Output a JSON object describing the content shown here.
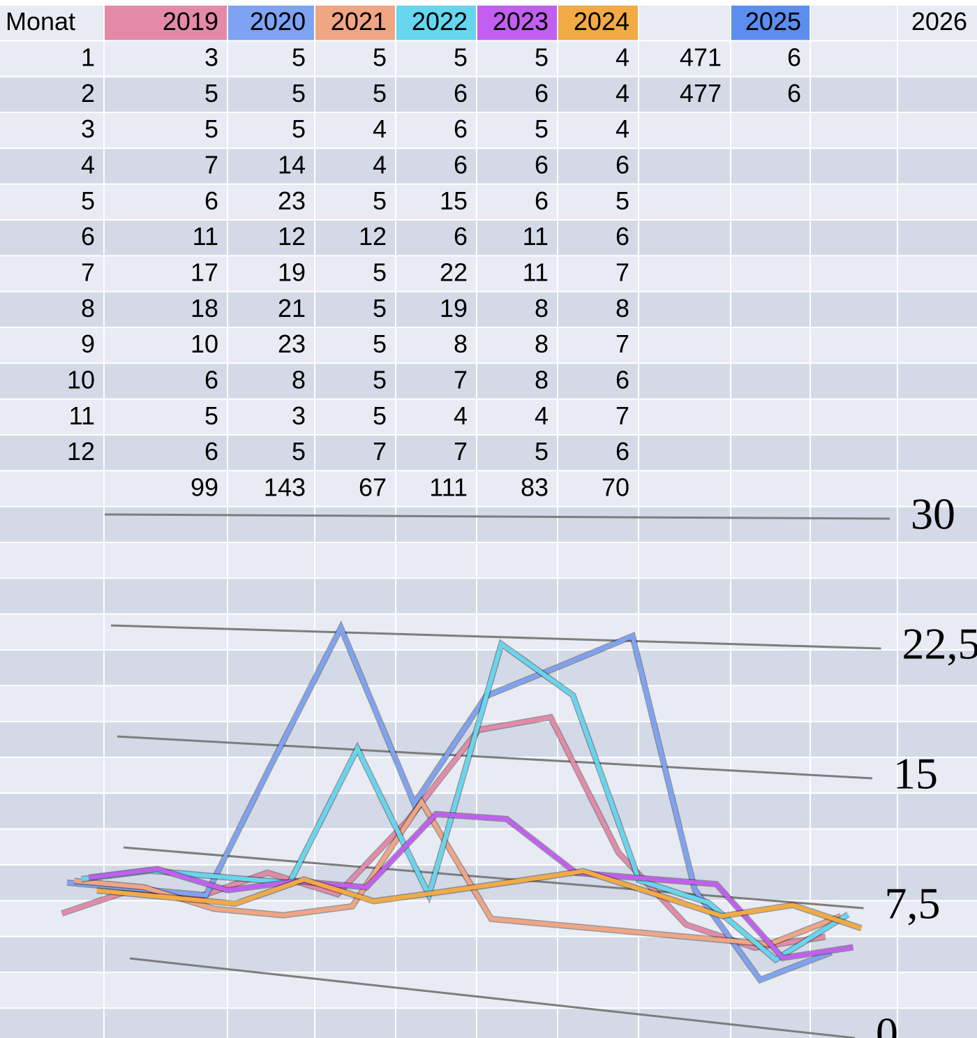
{
  "table": {
    "first_header": "Monat",
    "totals": [
      99,
      143,
      67,
      111,
      83,
      70
    ],
    "extra_values": [
      471,
      477
    ],
    "header_2025": "2025",
    "values_2025": [
      6,
      6
    ],
    "header_2026": "2026"
  },
  "chart_data": {
    "type": "line",
    "categories": [
      1,
      2,
      3,
      4,
      5,
      6,
      7,
      8,
      9,
      10,
      11,
      12
    ],
    "series": [
      {
        "name": "2019",
        "color": "#e48aa8",
        "values": [
          3,
          5,
          5,
          7,
          6,
          11,
          17,
          18,
          10,
          6,
          5,
          6
        ]
      },
      {
        "name": "2020",
        "color": "#7ea3f3",
        "values": [
          5,
          5,
          5,
          14,
          23,
          12,
          19,
          21,
          23,
          8,
          3,
          5
        ]
      },
      {
        "name": "2021",
        "color": "#f0a583",
        "values": [
          5,
          5,
          4,
          4,
          5,
          12,
          5,
          5,
          5,
          5,
          5,
          7
        ]
      },
      {
        "name": "2022",
        "color": "#66d6ef",
        "values": [
          5,
          6,
          6,
          6,
          15,
          6,
          22,
          19,
          8,
          7,
          4,
          7
        ]
      },
      {
        "name": "2023",
        "color": "#c25ff0",
        "values": [
          5,
          6,
          5,
          6,
          6,
          11,
          11,
          8,
          8,
          8,
          4,
          5
        ]
      },
      {
        "name": "2024",
        "color": "#f2aa44",
        "values": [
          4,
          4,
          4,
          6,
          5,
          6,
          7,
          8,
          7,
          6,
          7,
          6
        ]
      }
    ],
    "color_2025": "#5b8ef0",
    "ylim": [
      0,
      30
    ],
    "yticks": [
      0,
      {
        "value": 7.5,
        "label": "7,5"
      },
      15,
      {
        "value": 22.5,
        "label": "22,5"
      },
      30
    ]
  }
}
